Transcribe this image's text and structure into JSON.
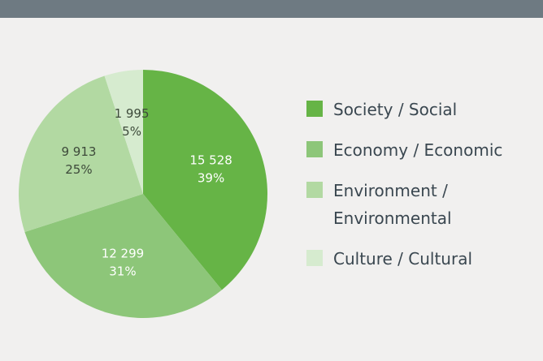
{
  "chart_data": {
    "type": "pie",
    "categories": [
      "Society / Social",
      "Economy / Economic",
      "Environment / Environmental",
      "Culture / Cultural"
    ],
    "values": [
      15528,
      12299,
      9913,
      1995
    ],
    "value_labels": [
      "15 528",
      "12 299",
      "9 913",
      "1 995"
    ],
    "percent_labels": [
      "39%",
      "31%",
      "25%",
      "5%"
    ],
    "colors": [
      "#66b446",
      "#8dc679",
      "#b2d9a2",
      "#d6ebcf"
    ],
    "legend": "right"
  }
}
